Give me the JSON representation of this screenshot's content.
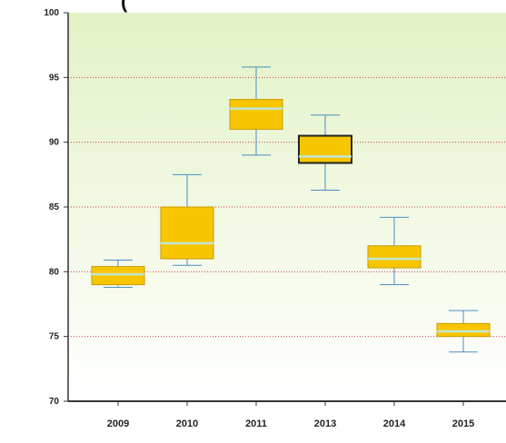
{
  "chart_data": {
    "type": "box",
    "title": "(",
    "ylabel": "",
    "xlabel": "",
    "ylim": [
      70,
      100
    ],
    "yticks": [
      100,
      95,
      90,
      85,
      80,
      75,
      70
    ],
    "grid": true,
    "categories": [
      "2009",
      "2010",
      "2011",
      "2013",
      "2014",
      "2015"
    ],
    "sublabels": [
      "",
      "",
      "",
      "",
      "",
      ""
    ],
    "boxes": [
      {
        "whisker_low": 78.8,
        "q1": 79.0,
        "median": 79.8,
        "q3": 80.4,
        "whisker_high": 80.9,
        "highlight": false
      },
      {
        "whisker_low": 80.5,
        "q1": 81.0,
        "median": 82.2,
        "q3": 85.0,
        "whisker_high": 87.5,
        "highlight": false
      },
      {
        "whisker_low": 89.0,
        "q1": 91.0,
        "median": 92.6,
        "q3": 93.3,
        "whisker_high": 95.8,
        "highlight": false
      },
      {
        "whisker_low": 86.3,
        "q1": 88.4,
        "median": 88.9,
        "q3": 90.5,
        "whisker_high": 92.1,
        "highlight": true
      },
      {
        "whisker_low": 79.0,
        "q1": 80.3,
        "median": 81.0,
        "q3": 82.0,
        "whisker_high": 84.2,
        "highlight": false
      },
      {
        "whisker_low": 73.8,
        "q1": 75.0,
        "median": 75.4,
        "q3": 76.0,
        "whisker_high": 77.0,
        "highlight": false
      }
    ],
    "colors": {
      "box_fill": "#f7c600",
      "median_line": "#bfe6d8",
      "whisker": "#4a8fc2",
      "gridline": "#d04040",
      "plot_bg_top": "#e3f2c6",
      "plot_bg_bottom": "#ffffff",
      "axis": "#333333"
    }
  }
}
